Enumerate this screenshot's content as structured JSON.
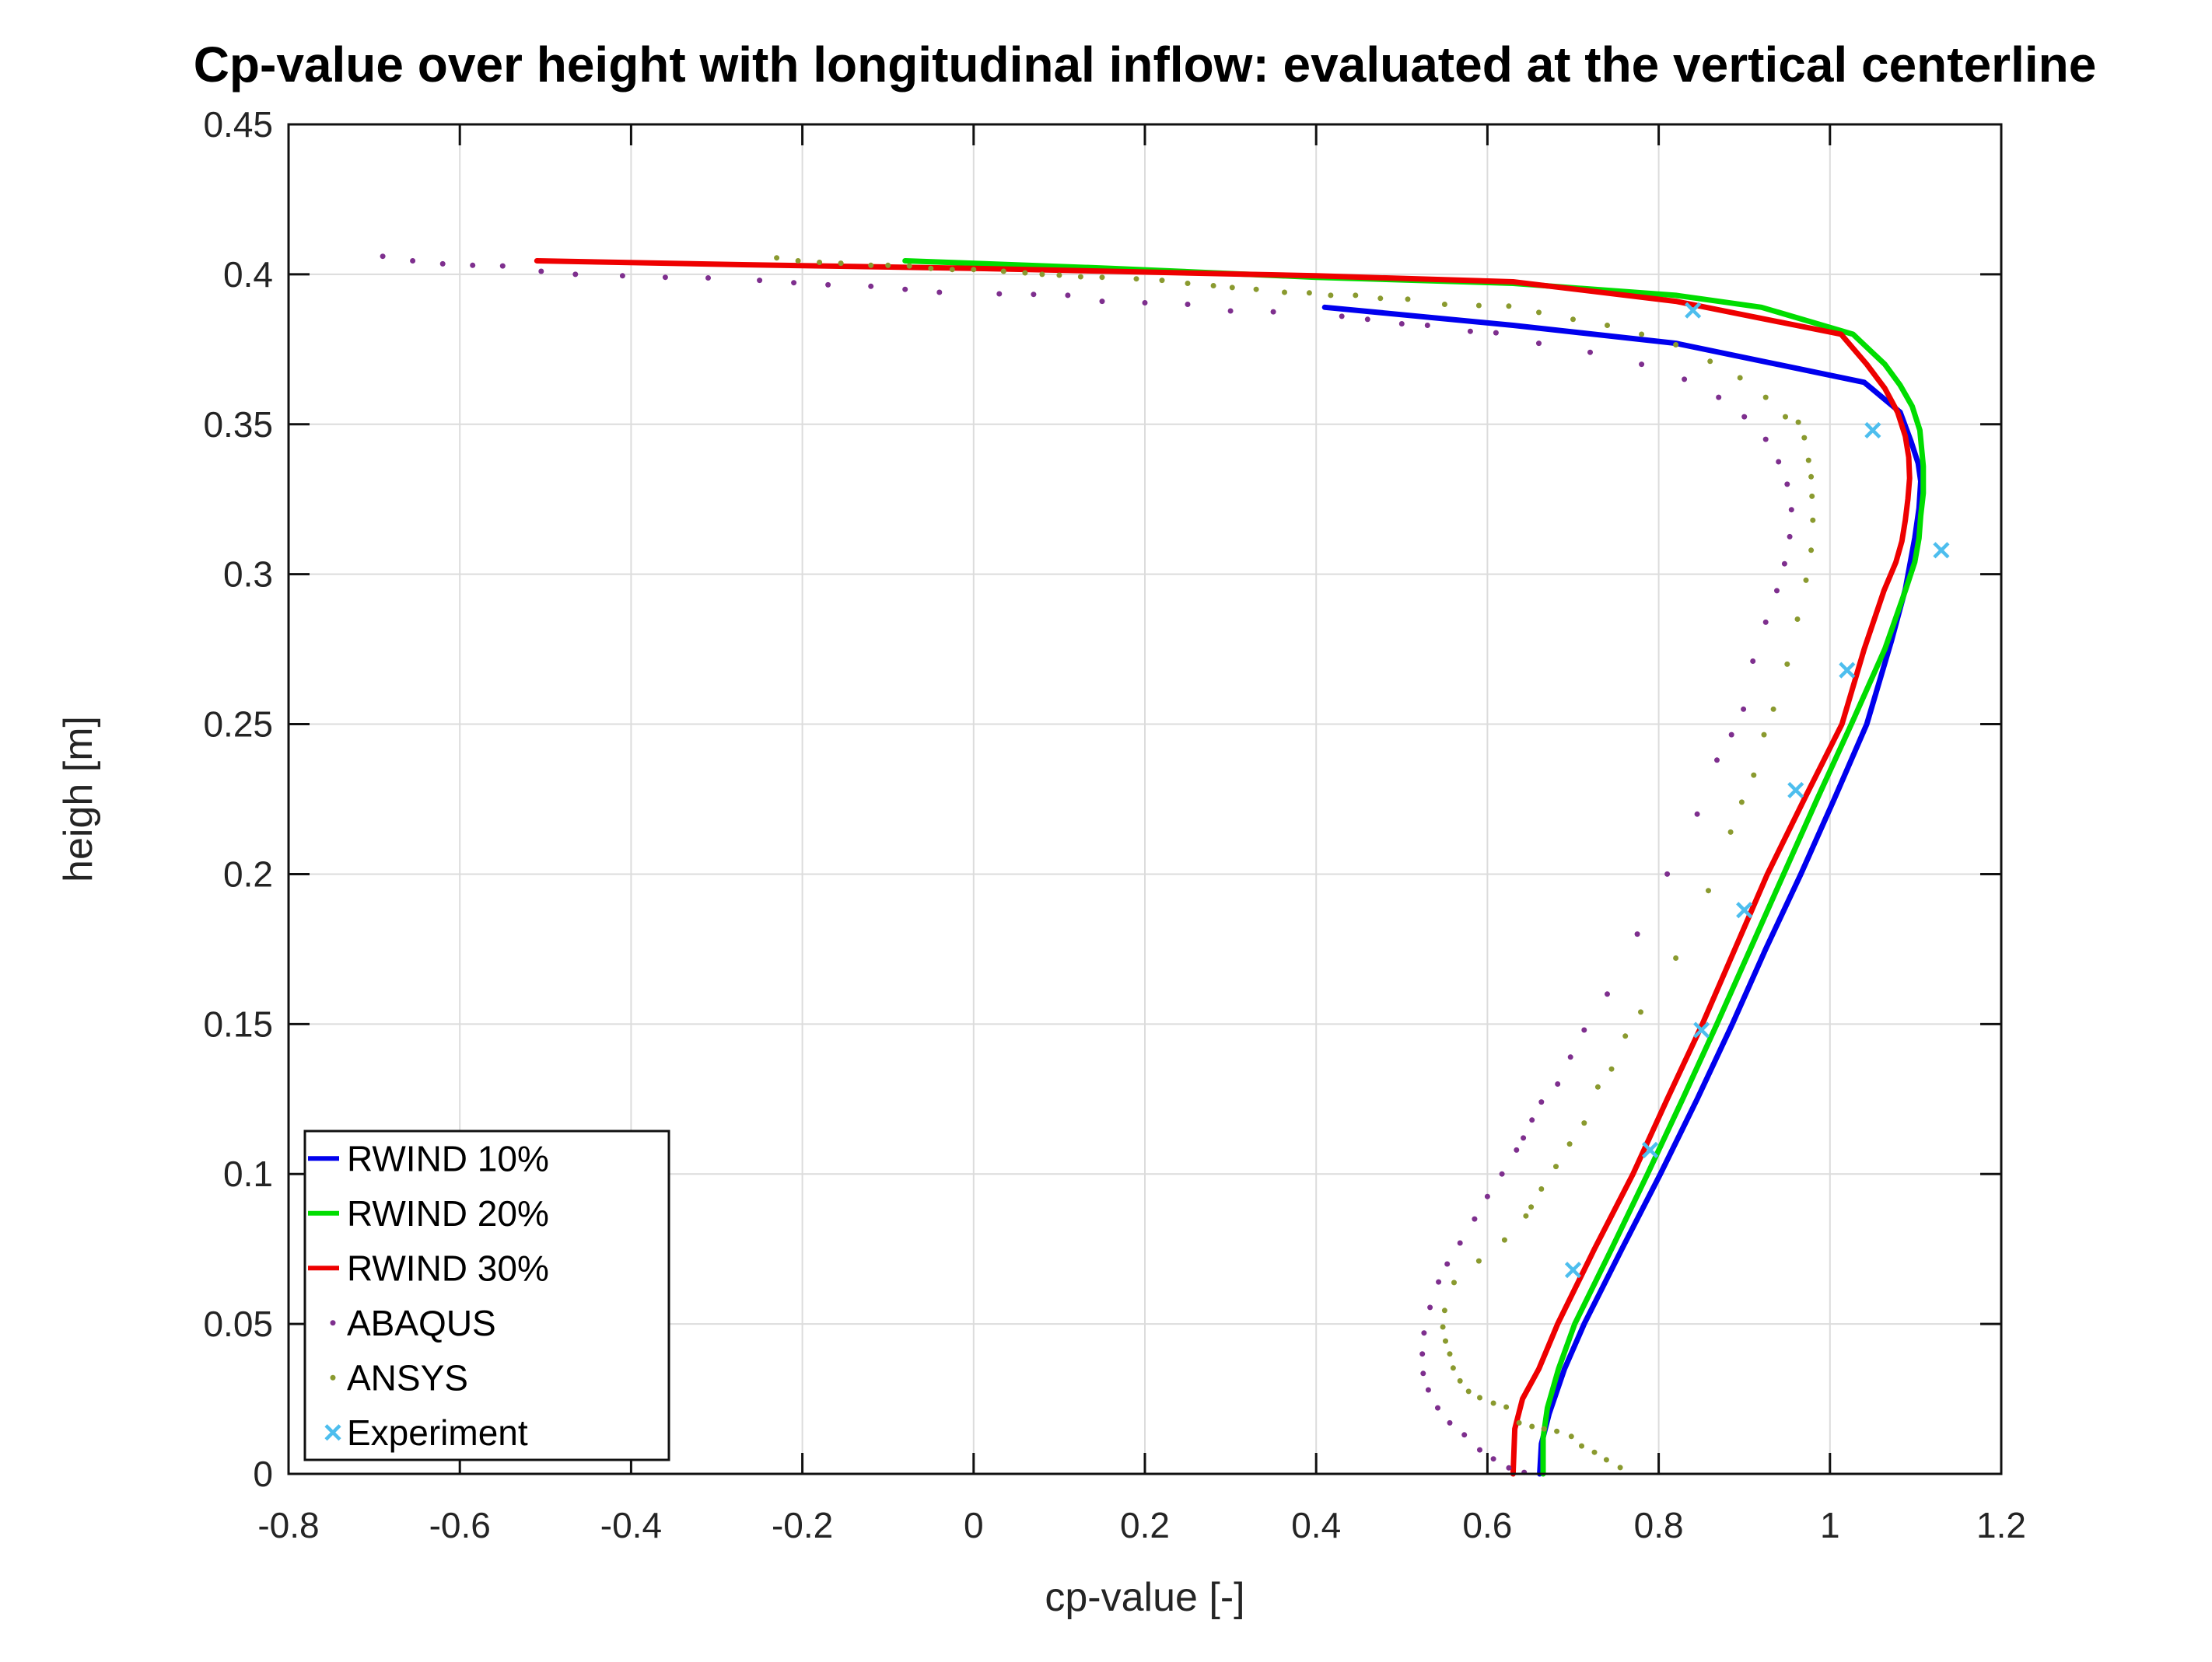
{
  "chart_data": {
    "type": "line",
    "title": "Cp-value over height with longitudinal inflow: evaluated at the vertical centerline",
    "xlabel": "cp-value [-]",
    "ylabel": "heigh [m]",
    "xlim": [
      -0.8,
      1.2
    ],
    "ylim": [
      0,
      0.45
    ],
    "x_ticks": [
      -0.8,
      -0.6,
      -0.4,
      -0.2,
      0,
      0.2,
      0.4,
      0.6,
      0.8,
      1,
      1.2
    ],
    "x_tick_labels": [
      "-0.8",
      "-0.6",
      "-0.4",
      "-0.2",
      "0",
      "0.2",
      "0.4",
      "0.6",
      "0.8",
      "1",
      "1.2"
    ],
    "y_ticks": [
      0,
      0.05,
      0.1,
      0.15,
      0.2,
      0.25,
      0.3,
      0.35,
      0.4,
      0.45
    ],
    "y_tick_labels": [
      "0",
      "0.05",
      "0.1",
      "0.15",
      "0.2",
      "0.25",
      "0.3",
      "0.35",
      "0.4",
      "0.45"
    ],
    "grid": true,
    "grid_color": "#dcdcdc",
    "axis_color": "#111111",
    "legend_position": "southwest-inside",
    "series": [
      {
        "name": "RWIND 10%",
        "style": "line",
        "color": "#0000ee",
        "points": [
          [
            0.41,
            0.389
          ],
          [
            0.63,
            0.383
          ],
          [
            0.82,
            0.377
          ],
          [
            1.04,
            0.364
          ],
          [
            1.082,
            0.354
          ],
          [
            1.095,
            0.344
          ],
          [
            1.103,
            0.337
          ],
          [
            1.106,
            0.331
          ],
          [
            1.104,
            0.322
          ],
          [
            1.099,
            0.312
          ],
          [
            1.088,
            0.295
          ],
          [
            1.072,
            0.278
          ],
          [
            1.043,
            0.25
          ],
          [
            1.005,
            0.225
          ],
          [
            0.966,
            0.2
          ],
          [
            0.925,
            0.175
          ],
          [
            0.886,
            0.15
          ],
          [
            0.845,
            0.125
          ],
          [
            0.802,
            0.1
          ],
          [
            0.757,
            0.075
          ],
          [
            0.713,
            0.05
          ],
          [
            0.69,
            0.035
          ],
          [
            0.672,
            0.02
          ],
          [
            0.663,
            0.01
          ],
          [
            0.661,
            0
          ]
        ]
      },
      {
        "name": "RWIND 20%",
        "style": "line",
        "color": "#00dd00",
        "points": [
          [
            -0.08,
            0.4045
          ],
          [
            0.16,
            0.402
          ],
          [
            0.4,
            0.399
          ],
          [
            0.63,
            0.397
          ],
          [
            0.82,
            0.393
          ],
          [
            0.92,
            0.389
          ],
          [
            1.027,
            0.38
          ],
          [
            1.064,
            0.37
          ],
          [
            1.082,
            0.363
          ],
          [
            1.096,
            0.356
          ],
          [
            1.105,
            0.348
          ],
          [
            1.109,
            0.336
          ],
          [
            1.109,
            0.327
          ],
          [
            1.106,
            0.3195
          ],
          [
            1.104,
            0.312
          ],
          [
            1.099,
            0.304
          ],
          [
            1.088,
            0.2945
          ],
          [
            1.064,
            0.275
          ],
          [
            1.025,
            0.25
          ],
          [
            0.985,
            0.225
          ],
          [
            0.946,
            0.2
          ],
          [
            0.907,
            0.175
          ],
          [
            0.868,
            0.15
          ],
          [
            0.828,
            0.125
          ],
          [
            0.787,
            0.1
          ],
          [
            0.745,
            0.075
          ],
          [
            0.702,
            0.05
          ],
          [
            0.683,
            0.035
          ],
          [
            0.67,
            0.022
          ],
          [
            0.665,
            0.012
          ],
          [
            0.665,
            0
          ]
        ]
      },
      {
        "name": "RWIND 30%",
        "style": "line",
        "color": "#ee0000",
        "points": [
          [
            -0.51,
            0.4045
          ],
          [
            -0.27,
            0.4032
          ],
          [
            0,
            0.402
          ],
          [
            0.16,
            0.401
          ],
          [
            0.4,
            0.3995
          ],
          [
            0.63,
            0.3975
          ],
          [
            0.82,
            0.391
          ],
          [
            1.013,
            0.38
          ],
          [
            1.043,
            0.37
          ],
          [
            1.064,
            0.362
          ],
          [
            1.079,
            0.354
          ],
          [
            1.088,
            0.346
          ],
          [
            1.092,
            0.339
          ],
          [
            1.093,
            0.332
          ],
          [
            1.091,
            0.325
          ],
          [
            1.088,
            0.318
          ],
          [
            1.084,
            0.311
          ],
          [
            1.077,
            0.304
          ],
          [
            1.063,
            0.2945
          ],
          [
            1.04,
            0.275
          ],
          [
            1.014,
            0.25
          ],
          [
            0.97,
            0.225
          ],
          [
            0.927,
            0.2
          ],
          [
            0.889,
            0.175
          ],
          [
            0.851,
            0.15
          ],
          [
            0.81,
            0.125
          ],
          [
            0.77,
            0.1
          ],
          [
            0.725,
            0.075
          ],
          [
            0.682,
            0.05
          ],
          [
            0.66,
            0.035
          ],
          [
            0.641,
            0.025
          ],
          [
            0.632,
            0.015
          ],
          [
            0.63,
            0
          ]
        ]
      },
      {
        "name": "ABAQUS",
        "style": "dots",
        "color": "#7e2f8e",
        "points": [
          [
            -0.69,
            0.406
          ],
          [
            -0.655,
            0.4045
          ],
          [
            -0.62,
            0.4035
          ],
          [
            -0.585,
            0.403
          ],
          [
            -0.55,
            0.4028
          ],
          [
            -0.505,
            0.401
          ],
          [
            -0.465,
            0.4
          ],
          [
            -0.41,
            0.3995
          ],
          [
            -0.36,
            0.399
          ],
          [
            -0.31,
            0.3988
          ],
          [
            -0.25,
            0.398
          ],
          [
            -0.21,
            0.3972
          ],
          [
            -0.17,
            0.3965
          ],
          [
            -0.12,
            0.396
          ],
          [
            -0.08,
            0.395
          ],
          [
            -0.04,
            0.394
          ],
          [
            0.03,
            0.3935
          ],
          [
            0.07,
            0.3933
          ],
          [
            0.11,
            0.393
          ],
          [
            0.15,
            0.391
          ],
          [
            0.2,
            0.3905
          ],
          [
            0.25,
            0.39
          ],
          [
            0.3,
            0.3878
          ],
          [
            0.35,
            0.3875
          ],
          [
            0.43,
            0.386
          ],
          [
            0.46,
            0.385
          ],
          [
            0.5,
            0.3835
          ],
          [
            0.53,
            0.383
          ],
          [
            0.58,
            0.381
          ],
          [
            0.61,
            0.3805
          ],
          [
            0.66,
            0.377
          ],
          [
            0.72,
            0.374
          ],
          [
            0.78,
            0.37
          ],
          [
            0.83,
            0.365
          ],
          [
            0.87,
            0.359
          ],
          [
            0.9,
            0.3525
          ],
          [
            0.925,
            0.345
          ],
          [
            0.94,
            0.3375
          ],
          [
            0.95,
            0.33
          ],
          [
            0.955,
            0.3215
          ],
          [
            0.953,
            0.3125
          ],
          [
            0.947,
            0.3035
          ],
          [
            0.938,
            0.2945
          ],
          [
            0.925,
            0.284
          ],
          [
            0.91,
            0.271
          ],
          [
            0.899,
            0.255
          ],
          [
            0.885,
            0.2465
          ],
          [
            0.868,
            0.238
          ],
          [
            0.845,
            0.22
          ],
          [
            0.81,
            0.2
          ],
          [
            0.775,
            0.18
          ],
          [
            0.74,
            0.16
          ],
          [
            0.713,
            0.148
          ],
          [
            0.697,
            0.139
          ],
          [
            0.682,
            0.13
          ],
          [
            0.663,
            0.124
          ],
          [
            0.652,
            0.118
          ],
          [
            0.642,
            0.112
          ],
          [
            0.634,
            0.108
          ],
          [
            0.617,
            0.1
          ],
          [
            0.6,
            0.0925
          ],
          [
            0.585,
            0.085
          ],
          [
            0.568,
            0.077
          ],
          [
            0.553,
            0.07
          ],
          [
            0.543,
            0.064
          ],
          [
            0.533,
            0.0555
          ],
          [
            0.526,
            0.047
          ],
          [
            0.524,
            0.04
          ],
          [
            0.525,
            0.0335
          ],
          [
            0.531,
            0.028
          ],
          [
            0.542,
            0.022
          ],
          [
            0.556,
            0.017
          ],
          [
            0.573,
            0.013
          ],
          [
            0.591,
            0.008
          ],
          [
            0.607,
            0.005
          ],
          [
            0.625,
            0.002
          ],
          [
            0.643,
            0.0005
          ]
        ]
      },
      {
        "name": "ANSYS",
        "style": "dots",
        "color": "#8a9a2f",
        "points": [
          [
            -0.23,
            0.4055
          ],
          [
            -0.205,
            0.4045
          ],
          [
            -0.18,
            0.404
          ],
          [
            -0.155,
            0.4037
          ],
          [
            -0.12,
            0.403
          ],
          [
            -0.1,
            0.403
          ],
          [
            -0.075,
            0.4028
          ],
          [
            -0.05,
            0.402
          ],
          [
            -0.025,
            0.4016
          ],
          [
            0,
            0.4016
          ],
          [
            0.035,
            0.401
          ],
          [
            0.06,
            0.4005
          ],
          [
            0.08,
            0.4
          ],
          [
            0.1,
            0.3997
          ],
          [
            0.125,
            0.3992
          ],
          [
            0.15,
            0.399
          ],
          [
            0.19,
            0.3985
          ],
          [
            0.22,
            0.398
          ],
          [
            0.25,
            0.397
          ],
          [
            0.28,
            0.3962
          ],
          [
            0.302,
            0.3956
          ],
          [
            0.33,
            0.395
          ],
          [
            0.363,
            0.394
          ],
          [
            0.392,
            0.3938
          ],
          [
            0.417,
            0.393
          ],
          [
            0.446,
            0.393
          ],
          [
            0.475,
            0.392
          ],
          [
            0.507,
            0.3917
          ],
          [
            0.55,
            0.39
          ],
          [
            0.59,
            0.3896
          ],
          [
            0.625,
            0.3894
          ],
          [
            0.66,
            0.3873
          ],
          [
            0.7,
            0.385
          ],
          [
            0.74,
            0.383
          ],
          [
            0.78,
            0.38
          ],
          [
            0.82,
            0.3765
          ],
          [
            0.86,
            0.371
          ],
          [
            0.895,
            0.3655
          ],
          [
            0.925,
            0.359
          ],
          [
            0.948,
            0.3525
          ],
          [
            0.963,
            0.3507
          ],
          [
            0.97,
            0.3455
          ],
          [
            0.975,
            0.338
          ],
          [
            0.978,
            0.3325
          ],
          [
            0.979,
            0.326
          ],
          [
            0.98,
            0.318
          ],
          [
            0.978,
            0.308
          ],
          [
            0.972,
            0.298
          ],
          [
            0.962,
            0.285
          ],
          [
            0.95,
            0.27
          ],
          [
            0.934,
            0.255
          ],
          [
            0.923,
            0.2465
          ],
          [
            0.911,
            0.233
          ],
          [
            0.897,
            0.224
          ],
          [
            0.884,
            0.214
          ],
          [
            0.858,
            0.1945
          ],
          [
            0.82,
            0.172
          ],
          [
            0.779,
            0.154
          ],
          [
            0.761,
            0.146
          ],
          [
            0.745,
            0.135
          ],
          [
            0.729,
            0.129
          ],
          [
            0.713,
            0.117
          ],
          [
            0.696,
            0.11
          ],
          [
            0.68,
            0.1025
          ],
          [
            0.663,
            0.095
          ],
          [
            0.651,
            0.089
          ],
          [
            0.645,
            0.086
          ],
          [
            0.62,
            0.078
          ],
          [
            0.59,
            0.071
          ],
          [
            0.561,
            0.0638
          ],
          [
            0.55,
            0.0545
          ],
          [
            0.548,
            0.049
          ],
          [
            0.551,
            0.0443
          ],
          [
            0.556,
            0.04
          ],
          [
            0.56,
            0.0353
          ],
          [
            0.568,
            0.031
          ],
          [
            0.578,
            0.0275
          ],
          [
            0.591,
            0.0254
          ],
          [
            0.607,
            0.0236
          ],
          [
            0.622,
            0.0223
          ],
          [
            0.637,
            0.017
          ],
          [
            0.652,
            0.0158
          ],
          [
            0.666,
            0.015
          ],
          [
            0.681,
            0.0142
          ],
          [
            0.698,
            0.0125
          ],
          [
            0.71,
            0.0093
          ],
          [
            0.725,
            0.0072
          ],
          [
            0.739,
            0.0047
          ],
          [
            0.755,
            0.0021
          ]
        ]
      },
      {
        "name": "Experiment",
        "style": "x-markers",
        "color": "#4dbeee",
        "points": [
          [
            0.84,
            0.388
          ],
          [
            1.05,
            0.348
          ],
          [
            1.13,
            0.308
          ],
          [
            1.02,
            0.268
          ],
          [
            0.96,
            0.228
          ],
          [
            0.9,
            0.188
          ],
          [
            0.85,
            0.148
          ],
          [
            0.79,
            0.108
          ],
          [
            0.7,
            0.068
          ]
        ]
      }
    ]
  }
}
